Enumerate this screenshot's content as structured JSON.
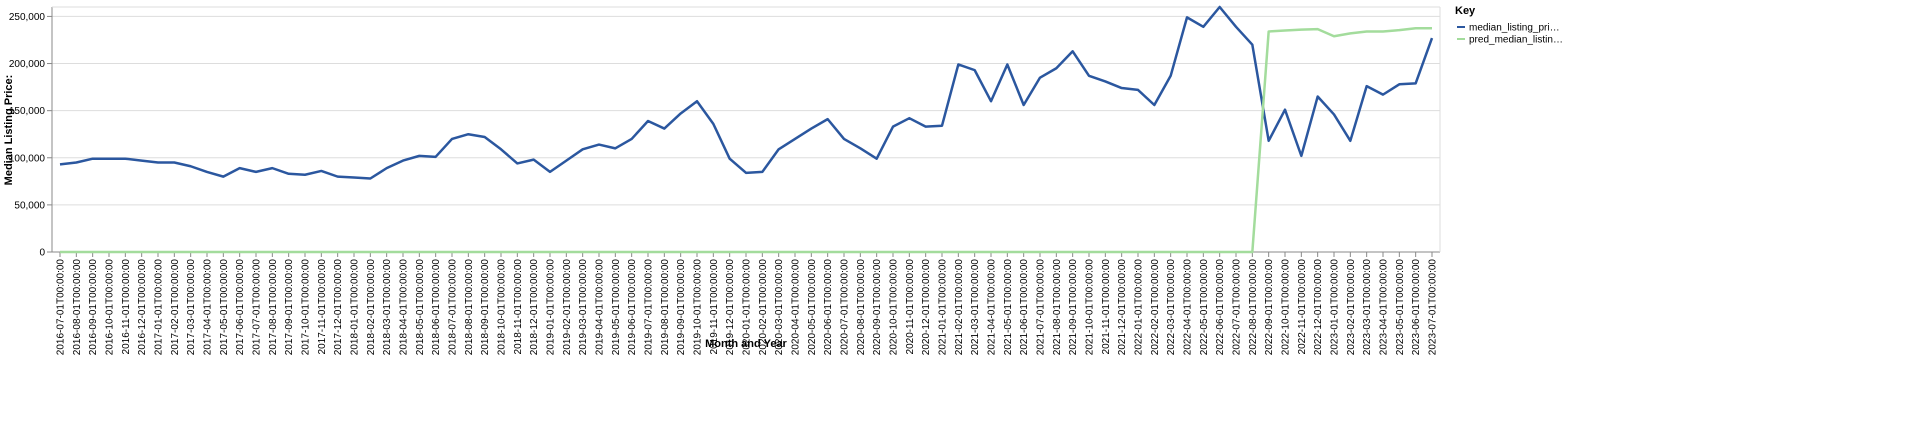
{
  "chart_data": {
    "type": "line",
    "y_label": "Median Listing Price:",
    "x_label": "Month and Year",
    "legend_title": "Key",
    "legend_position": "right",
    "grid": true,
    "categories": [
      "2016-07-01T00:00:00",
      "2016-08-01T00:00:00",
      "2016-09-01T00:00:00",
      "2016-10-01T00:00:00",
      "2016-11-01T00:00:00",
      "2016-12-01T00:00:00",
      "2017-01-01T00:00:00",
      "2017-02-01T00:00:00",
      "2017-03-01T00:00:00",
      "2017-04-01T00:00:00",
      "2017-05-01T00:00:00",
      "2017-06-01T00:00:00",
      "2017-07-01T00:00:00",
      "2017-08-01T00:00:00",
      "2017-09-01T00:00:00",
      "2017-10-01T00:00:00",
      "2017-11-01T00:00:00",
      "2017-12-01T00:00:00",
      "2018-01-01T00:00:00",
      "2018-02-01T00:00:00",
      "2018-03-01T00:00:00",
      "2018-04-01T00:00:00",
      "2018-05-01T00:00:00",
      "2018-06-01T00:00:00",
      "2018-07-01T00:00:00",
      "2018-08-01T00:00:00",
      "2018-09-01T00:00:00",
      "2018-10-01T00:00:00",
      "2018-11-01T00:00:00",
      "2018-12-01T00:00:00",
      "2019-01-01T00:00:00",
      "2019-02-01T00:00:00",
      "2019-03-01T00:00:00",
      "2019-04-01T00:00:00",
      "2019-05-01T00:00:00",
      "2019-06-01T00:00:00",
      "2019-07-01T00:00:00",
      "2019-08-01T00:00:00",
      "2019-09-01T00:00:00",
      "2019-10-01T00:00:00",
      "2019-11-01T00:00:00",
      "2019-12-01T00:00:00",
      "2020-01-01T00:00:00",
      "2020-02-01T00:00:00",
      "2020-03-01T00:00:00",
      "2020-04-01T00:00:00",
      "2020-05-01T00:00:00",
      "2020-06-01T00:00:00",
      "2020-07-01T00:00:00",
      "2020-08-01T00:00:00",
      "2020-09-01T00:00:00",
      "2020-10-01T00:00:00",
      "2020-11-01T00:00:00",
      "2020-12-01T00:00:00",
      "2021-01-01T00:00:00",
      "2021-02-01T00:00:00",
      "2021-03-01T00:00:00",
      "2021-04-01T00:00:00",
      "2021-05-01T00:00:00",
      "2021-06-01T00:00:00",
      "2021-07-01T00:00:00",
      "2021-08-01T00:00:00",
      "2021-09-01T00:00:00",
      "2021-10-01T00:00:00",
      "2021-11-01T00:00:00",
      "2021-12-01T00:00:00",
      "2022-01-01T00:00:00",
      "2022-02-01T00:00:00",
      "2022-03-01T00:00:00",
      "2022-04-01T00:00:00",
      "2022-05-01T00:00:00",
      "2022-06-01T00:00:00",
      "2022-07-01T00:00:00",
      "2022-08-01T00:00:00",
      "2022-09-01T00:00:00",
      "2022-10-01T00:00:00",
      "2022-11-01T00:00:00",
      "2022-12-01T00:00:00",
      "2023-01-01T00:00:00",
      "2023-02-01T00:00:00",
      "2023-03-01T00:00:00",
      "2023-04-01T00:00:00",
      "2023-05-01T00:00:00",
      "2023-06-01T00:00:00",
      "2023-07-01T00:00:00"
    ],
    "series": [
      {
        "name": "median_listing_pri…",
        "color": "#2b579f",
        "values": [
          93000,
          95000,
          99000,
          99000,
          99000,
          97000,
          95000,
          95000,
          91000,
          85000,
          80000,
          89000,
          85000,
          89000,
          83000,
          82000,
          86000,
          80000,
          79000,
          78000,
          89000,
          97000,
          102000,
          101000,
          120000,
          125000,
          122000,
          109000,
          94000,
          98000,
          85000,
          97000,
          109000,
          114000,
          110000,
          120000,
          139000,
          131000,
          147000,
          160000,
          136000,
          99000,
          84000,
          85000,
          109000,
          120000,
          131000,
          141000,
          120000,
          110000,
          99000,
          133000,
          142000,
          133000,
          134000,
          199000,
          193000,
          160000,
          199000,
          156000,
          185000,
          195000,
          213000,
          187000,
          181000,
          174000,
          172000,
          156000,
          187000,
          249000,
          239000,
          260000,
          239000,
          220000,
          118000,
          151000,
          102000,
          165000,
          146000,
          118000,
          176000,
          167000,
          178000,
          179000,
          227000
        ]
      },
      {
        "name": "pred_median_listin…",
        "color": "#a3dc9c",
        "values": [
          0,
          0,
          0,
          0,
          0,
          0,
          0,
          0,
          0,
          0,
          0,
          0,
          0,
          0,
          0,
          0,
          0,
          0,
          0,
          0,
          0,
          0,
          0,
          0,
          0,
          0,
          0,
          0,
          0,
          0,
          0,
          0,
          0,
          0,
          0,
          0,
          0,
          0,
          0,
          0,
          0,
          0,
          0,
          0,
          0,
          0,
          0,
          0,
          0,
          0,
          0,
          0,
          0,
          0,
          0,
          0,
          0,
          0,
          0,
          0,
          0,
          0,
          0,
          0,
          0,
          0,
          0,
          0,
          0,
          0,
          0,
          0,
          0,
          0,
          234000,
          235000,
          236000,
          236500,
          229000,
          232000,
          234000,
          234000,
          235500,
          237500,
          237500
        ]
      }
    ],
    "ylim": [
      0,
      260000
    ],
    "yticks": [
      0,
      {
        "value": 50000,
        "label": "50,000"
      },
      {
        "value": 100000,
        "label": "100,000"
      },
      {
        "value": 150000,
        "label": "150,000"
      },
      {
        "value": 200000,
        "label": "200,000"
      },
      {
        "value": 250000,
        "label": "250,000"
      }
    ]
  }
}
